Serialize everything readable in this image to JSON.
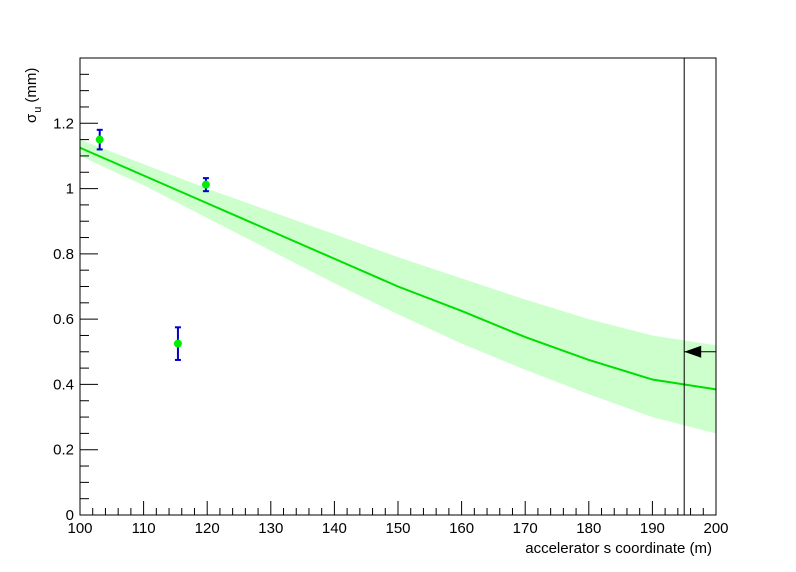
{
  "chart_data": {
    "type": "scatter",
    "xlabel": "accelerator s coordinate (m)",
    "ylabel": {
      "symbol": "σ",
      "subscript": "u",
      "unit": "(mm)"
    },
    "xlim": [
      100,
      200
    ],
    "ylim": [
      0,
      1.4
    ],
    "x_ticks": [
      100,
      110,
      120,
      130,
      140,
      150,
      160,
      170,
      180,
      190,
      200
    ],
    "x_tick_labels": [
      "100",
      "110",
      "120",
      "130",
      "140",
      "150",
      "160",
      "170",
      "180",
      "190",
      "200"
    ],
    "y_ticks": [
      0,
      0.2,
      0.4,
      0.6,
      0.8,
      1,
      1.2
    ],
    "y_tick_labels": [
      "0",
      "0.2",
      "0.4",
      "0.6",
      "0.8",
      "1",
      "1.2"
    ],
    "grid": false,
    "points": [
      {
        "x": 103.1,
        "y": 1.15,
        "err": 0.03
      },
      {
        "x": 115.4,
        "y": 0.525,
        "err": 0.05
      },
      {
        "x": 119.8,
        "y": 1.012,
        "err": 0.02
      }
    ],
    "fit": {
      "x": [
        100,
        110,
        120,
        130,
        140,
        150,
        160,
        170,
        180,
        190,
        200
      ],
      "y": [
        1.125,
        1.04,
        0.955,
        0.87,
        0.785,
        0.7,
        0.625,
        0.545,
        0.475,
        0.415,
        0.385
      ],
      "upper": [
        1.15,
        1.075,
        1.0,
        0.93,
        0.86,
        0.79,
        0.725,
        0.66,
        0.6,
        0.55,
        0.52
      ],
      "lower": [
        1.1,
        1.01,
        0.91,
        0.81,
        0.71,
        0.615,
        0.525,
        0.445,
        0.37,
        0.3,
        0.25
      ]
    },
    "marker_line_x": 195,
    "arrow": {
      "x": 195,
      "y": 0.5
    },
    "colors": {
      "point": "#00ee00",
      "error_bar": "#0000cc",
      "fit_line": "#00dd00",
      "band": "#ccffcc",
      "axes": "#000000"
    }
  }
}
